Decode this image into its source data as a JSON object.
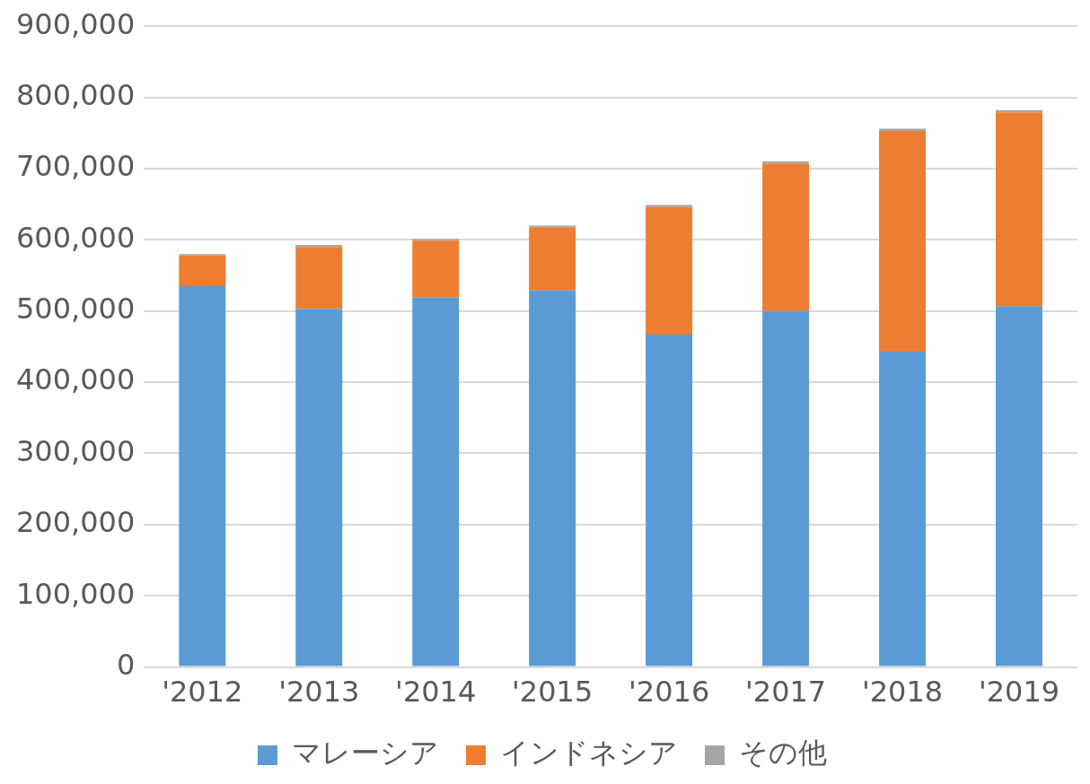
{
  "chart_data": {
    "type": "bar",
    "stacked": true,
    "grid": true,
    "legend": "bottom",
    "categories": [
      "'2012",
      "'2013",
      "'2014",
      "'2015",
      "'2016",
      "'2017",
      "'2018",
      "'2019"
    ],
    "series": [
      {
        "name": "マレーシア",
        "color": "#5b9bd5",
        "values": [
          535000,
          503000,
          519000,
          529000,
          467000,
          500000,
          443000,
          507000
        ]
      },
      {
        "name": "インドネシア",
        "color": "#ed7d31",
        "values": [
          43000,
          87000,
          80000,
          88000,
          179000,
          207000,
          310000,
          272000
        ]
      },
      {
        "name": "その他",
        "color": "#a5a5a5",
        "values": [
          2000,
          3000,
          2000,
          3000,
          3000,
          3000,
          3000,
          3000
        ]
      }
    ],
    "ylim": [
      0,
      900000
    ],
    "yticks": [
      0,
      {
        "value": 100000,
        "label": "100,000"
      },
      {
        "value": 200000,
        "label": "200,000"
      },
      {
        "value": 300000,
        "label": "300,000"
      },
      {
        "value": 400000,
        "label": "400,000"
      },
      {
        "value": 500000,
        "label": "500,000"
      },
      {
        "value": 600000,
        "label": "600,000"
      },
      {
        "value": 700000,
        "label": "700,000"
      },
      {
        "value": 800000,
        "label": "800,000"
      },
      {
        "value": 900000,
        "label": "900,000"
      }
    ]
  }
}
